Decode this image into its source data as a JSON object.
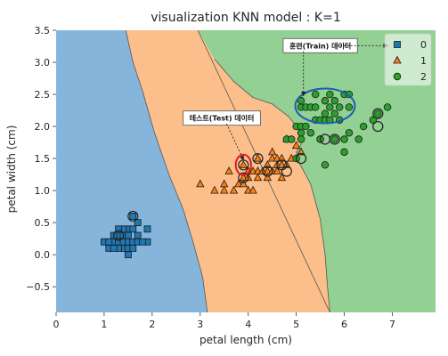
{
  "chart_data": {
    "type": "scatter",
    "title": "visualization KNN model : K=1",
    "xlabel": "petal length (cm)",
    "ylabel": "petal width (cm)",
    "xlim": [
      0,
      7.9
    ],
    "ylim": [
      -0.9,
      3.5
    ],
    "x_ticks": [
      0,
      1,
      2,
      3,
      4,
      5,
      6,
      7
    ],
    "y_ticks": [
      -0.5,
      0.0,
      0.5,
      1.0,
      1.5,
      2.0,
      2.5,
      3.0,
      3.5
    ],
    "x_tick_labels": [
      "0",
      "1",
      "2",
      "3",
      "4",
      "5",
      "6",
      "7"
    ],
    "y_tick_labels": [
      "−0.5",
      "0.0",
      "0.5",
      "1.0",
      "1.5",
      "2.0",
      "2.5",
      "3.0",
      "3.5"
    ],
    "grid": false,
    "legend_position": "top-right",
    "regions": [
      {
        "class": "0",
        "color": "#86b5db",
        "boundary": [
          [
            0.0,
            3.5
          ],
          [
            1.45,
            3.5
          ],
          [
            1.6,
            3.0
          ],
          [
            1.8,
            2.55
          ],
          [
            2.05,
            1.9
          ],
          [
            2.35,
            1.25
          ],
          [
            2.65,
            0.7
          ],
          [
            2.85,
            0.2
          ],
          [
            3.05,
            -0.35
          ],
          [
            3.15,
            -0.9
          ],
          [
            0.0,
            -0.9
          ]
        ]
      },
      {
        "class": "1",
        "color": "#fcbf8b",
        "boundary": [
          [
            1.45,
            3.5
          ],
          [
            2.95,
            3.5
          ],
          [
            3.3,
            3.05
          ],
          [
            3.7,
            2.7
          ],
          [
            4.1,
            2.45
          ],
          [
            4.5,
            2.35
          ],
          [
            4.85,
            2.15
          ],
          [
            5.1,
            1.9
          ],
          [
            5.1,
            1.72
          ],
          [
            5.0,
            1.6
          ],
          [
            5.05,
            1.45
          ],
          [
            5.3,
            1.1
          ],
          [
            5.5,
            0.55
          ],
          [
            5.6,
            0.0
          ],
          [
            5.65,
            -0.5
          ],
          [
            5.7,
            -0.9
          ],
          [
            3.15,
            -0.9
          ],
          [
            3.05,
            -0.35
          ],
          [
            2.85,
            0.2
          ],
          [
            2.65,
            0.7
          ],
          [
            2.35,
            1.25
          ],
          [
            2.05,
            1.9
          ],
          [
            1.8,
            2.55
          ],
          [
            1.6,
            3.0
          ]
        ]
      },
      {
        "class": "2",
        "color": "#92d094",
        "boundary": [
          [
            2.95,
            3.5
          ],
          [
            7.9,
            3.5
          ],
          [
            7.9,
            -0.9
          ],
          [
            5.7,
            -0.9
          ],
          [
            5.65,
            -0.5
          ],
          [
            5.6,
            0.0
          ],
          [
            5.5,
            0.55
          ],
          [
            5.3,
            1.1
          ],
          [
            5.05,
            1.45
          ],
          [
            5.0,
            1.6
          ],
          [
            5.1,
            1.72
          ],
          [
            5.1,
            1.9
          ],
          [
            4.85,
            2.15
          ],
          [
            4.5,
            2.35
          ],
          [
            4.1,
            2.45
          ],
          [
            3.7,
            2.7
          ],
          [
            3.3,
            3.05
          ]
        ]
      }
    ],
    "series": [
      {
        "name": "0",
        "marker": "square",
        "color": "#1f77b4",
        "points": [
          [
            1.0,
            0.2
          ],
          [
            1.1,
            0.1
          ],
          [
            1.2,
            0.2
          ],
          [
            1.3,
            0.2
          ],
          [
            1.3,
            0.3
          ],
          [
            1.4,
            0.2
          ],
          [
            1.4,
            0.1
          ],
          [
            1.4,
            0.3
          ],
          [
            1.5,
            0.2
          ],
          [
            1.5,
            0.1
          ],
          [
            1.5,
            0.4
          ],
          [
            1.6,
            0.2
          ],
          [
            1.6,
            0.4
          ],
          [
            1.7,
            0.3
          ],
          [
            1.7,
            0.2
          ],
          [
            1.9,
            0.2
          ],
          [
            1.9,
            0.4
          ],
          [
            1.2,
            0.3
          ],
          [
            1.3,
            0.1
          ],
          [
            1.4,
            0.4
          ],
          [
            1.5,
            0.3
          ],
          [
            1.6,
            0.6
          ],
          [
            1.7,
            0.5
          ],
          [
            1.1,
            0.2
          ],
          [
            1.5,
            0.0
          ],
          [
            1.3,
            0.4
          ],
          [
            1.6,
            0.1
          ],
          [
            1.8,
            0.2
          ],
          [
            1.2,
            0.1
          ]
        ]
      },
      {
        "name": "1",
        "marker": "triangle",
        "color": "#ff7f0e",
        "points": [
          [
            3.0,
            1.1
          ],
          [
            3.3,
            1.0
          ],
          [
            3.5,
            1.0
          ],
          [
            3.6,
            1.3
          ],
          [
            3.7,
            1.0
          ],
          [
            3.8,
            1.1
          ],
          [
            3.9,
            1.1
          ],
          [
            3.9,
            1.2
          ],
          [
            3.9,
            1.4
          ],
          [
            4.0,
            1.0
          ],
          [
            4.0,
            1.2
          ],
          [
            4.0,
            1.3
          ],
          [
            4.1,
            1.0
          ],
          [
            4.1,
            1.3
          ],
          [
            4.2,
            1.2
          ],
          [
            4.2,
            1.3
          ],
          [
            4.2,
            1.5
          ],
          [
            4.3,
            1.3
          ],
          [
            4.4,
            1.2
          ],
          [
            4.4,
            1.3
          ],
          [
            4.4,
            1.4
          ],
          [
            4.5,
            1.3
          ],
          [
            4.5,
            1.5
          ],
          [
            4.5,
            1.6
          ],
          [
            4.6,
            1.3
          ],
          [
            4.6,
            1.4
          ],
          [
            4.6,
            1.5
          ],
          [
            4.7,
            1.2
          ],
          [
            4.7,
            1.4
          ],
          [
            4.7,
            1.5
          ],
          [
            4.8,
            1.4
          ],
          [
            4.8,
            1.8
          ],
          [
            4.9,
            1.5
          ],
          [
            5.0,
            1.7
          ],
          [
            5.1,
            1.6
          ],
          [
            3.5,
            1.1
          ]
        ]
      },
      {
        "name": "2",
        "marker": "circle",
        "color": "#2ca02c",
        "points": [
          [
            4.8,
            1.8
          ],
          [
            4.9,
            1.8
          ],
          [
            5.0,
            2.0
          ],
          [
            5.1,
            1.9
          ],
          [
            5.1,
            2.0
          ],
          [
            5.1,
            2.3
          ],
          [
            5.1,
            2.4
          ],
          [
            5.2,
            2.3
          ],
          [
            5.3,
            2.3
          ],
          [
            5.4,
            2.1
          ],
          [
            5.4,
            2.3
          ],
          [
            5.5,
            2.1
          ],
          [
            5.5,
            1.8
          ],
          [
            5.6,
            2.1
          ],
          [
            5.6,
            2.4
          ],
          [
            5.6,
            2.2
          ],
          [
            5.7,
            2.5
          ],
          [
            5.7,
            2.3
          ],
          [
            5.8,
            2.2
          ],
          [
            5.8,
            2.4
          ],
          [
            5.9,
            2.3
          ],
          [
            5.9,
            2.1
          ],
          [
            6.0,
            2.5
          ],
          [
            6.0,
            1.8
          ],
          [
            6.1,
            2.3
          ],
          [
            6.1,
            2.5
          ],
          [
            6.3,
            1.8
          ],
          [
            6.4,
            2.0
          ],
          [
            6.6,
            2.1
          ],
          [
            6.9,
            2.3
          ],
          [
            5.0,
            1.5
          ],
          [
            5.1,
            1.8
          ],
          [
            5.8,
            1.8
          ],
          [
            6.1,
            1.9
          ],
          [
            5.6,
            1.4
          ],
          [
            5.3,
            1.9
          ],
          [
            5.4,
            2.5
          ],
          [
            5.7,
            2.1
          ],
          [
            6.7,
            2.2
          ],
          [
            6.0,
            1.6
          ],
          [
            5.5,
            1.8
          ],
          [
            5.2,
            2.0
          ]
        ]
      }
    ],
    "test_points": [
      [
        1.6,
        0.6
      ],
      [
        1.3,
        0.3
      ],
      [
        3.9,
        1.4
      ],
      [
        3.9,
        1.2
      ],
      [
        4.2,
        1.5
      ],
      [
        4.4,
        1.3
      ],
      [
        4.7,
        1.4
      ],
      [
        4.8,
        1.3
      ],
      [
        5.1,
        1.5
      ],
      [
        5.6,
        1.8
      ],
      [
        5.8,
        1.8
      ],
      [
        6.7,
        2.0
      ],
      [
        6.7,
        2.2
      ]
    ],
    "annotations": [
      {
        "text": "훈련(Train) 데이터",
        "box_center": [
          5.5,
          3.26
        ],
        "arrow_from": [
          5.15,
          3.17
        ],
        "arrow_to": [
          5.15,
          2.48
        ],
        "arrow2_from": [
          5.8,
          3.26
        ],
        "arrow2_to": [
          6.9,
          3.26
        ]
      },
      {
        "text": "테스트(Test) 데이터",
        "box_center": [
          3.45,
          2.13
        ],
        "arrow_from": [
          3.55,
          2.04
        ],
        "arrow_to": [
          3.9,
          1.48
        ]
      }
    ],
    "highlights": [
      {
        "shape": "ellipse",
        "center": [
          5.6,
          2.32
        ],
        "rx": 0.62,
        "ry": 0.27,
        "color": "#1a5fb4"
      },
      {
        "shape": "circle",
        "center": [
          3.9,
          1.4
        ],
        "rx": 0.16,
        "ry": 0.16,
        "color": "#e01b24"
      }
    ]
  }
}
